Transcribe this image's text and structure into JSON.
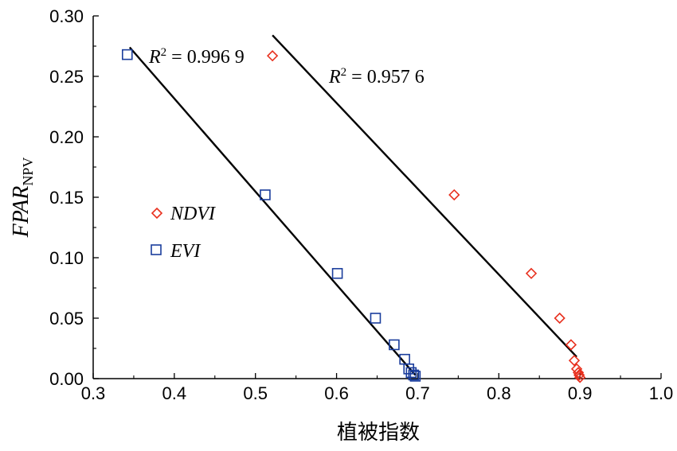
{
  "chart_data": {
    "type": "scatter",
    "xlabel": "植被指数",
    "ylabel": "FPAR",
    "ylabel_subscript": "NPV",
    "xlim": [
      0.3,
      1.0
    ],
    "ylim": [
      0.0,
      0.3
    ],
    "x_ticks": [
      "0.3",
      "0.4",
      "0.5",
      "0.6",
      "0.7",
      "0.8",
      "0.9",
      "1.0"
    ],
    "y_ticks": [
      "0.00",
      "0.05",
      "0.10",
      "0.15",
      "0.20",
      "0.25",
      "0.30"
    ],
    "grid": false,
    "legend_position": "left",
    "series": [
      {
        "name": "NDVI",
        "marker": "diamond",
        "color": "#e8301e",
        "points": [
          {
            "x": 0.521,
            "y": 0.267
          },
          {
            "x": 0.745,
            "y": 0.152
          },
          {
            "x": 0.84,
            "y": 0.087
          },
          {
            "x": 0.875,
            "y": 0.05
          },
          {
            "x": 0.889,
            "y": 0.028
          },
          {
            "x": 0.893,
            "y": 0.015
          },
          {
            "x": 0.896,
            "y": 0.008
          },
          {
            "x": 0.898,
            "y": 0.005
          },
          {
            "x": 0.899,
            "y": 0.003
          },
          {
            "x": 0.9,
            "y": 0.001
          }
        ],
        "fit": {
          "x": [
            0.521,
            0.896
          ],
          "y": [
            0.284,
            0.018
          ]
        },
        "r2_label": "R",
        "r2_sup": "2",
        "r2_value": " = 0.957 6"
      },
      {
        "name": "EVI",
        "marker": "square",
        "color": "#1a3d9c",
        "points": [
          {
            "x": 0.342,
            "y": 0.268
          },
          {
            "x": 0.512,
            "y": 0.152
          },
          {
            "x": 0.601,
            "y": 0.087
          },
          {
            "x": 0.648,
            "y": 0.05
          },
          {
            "x": 0.671,
            "y": 0.028
          },
          {
            "x": 0.684,
            "y": 0.016
          },
          {
            "x": 0.689,
            "y": 0.008
          },
          {
            "x": 0.692,
            "y": 0.005
          },
          {
            "x": 0.695,
            "y": 0.003
          },
          {
            "x": 0.697,
            "y": 0.002
          }
        ],
        "fit": {
          "x": [
            0.345,
            0.697
          ],
          "y": [
            0.274,
            0.003
          ]
        },
        "r2_label": "R",
        "r2_sup": "2",
        "r2_value": " = 0.996 9"
      }
    ]
  }
}
